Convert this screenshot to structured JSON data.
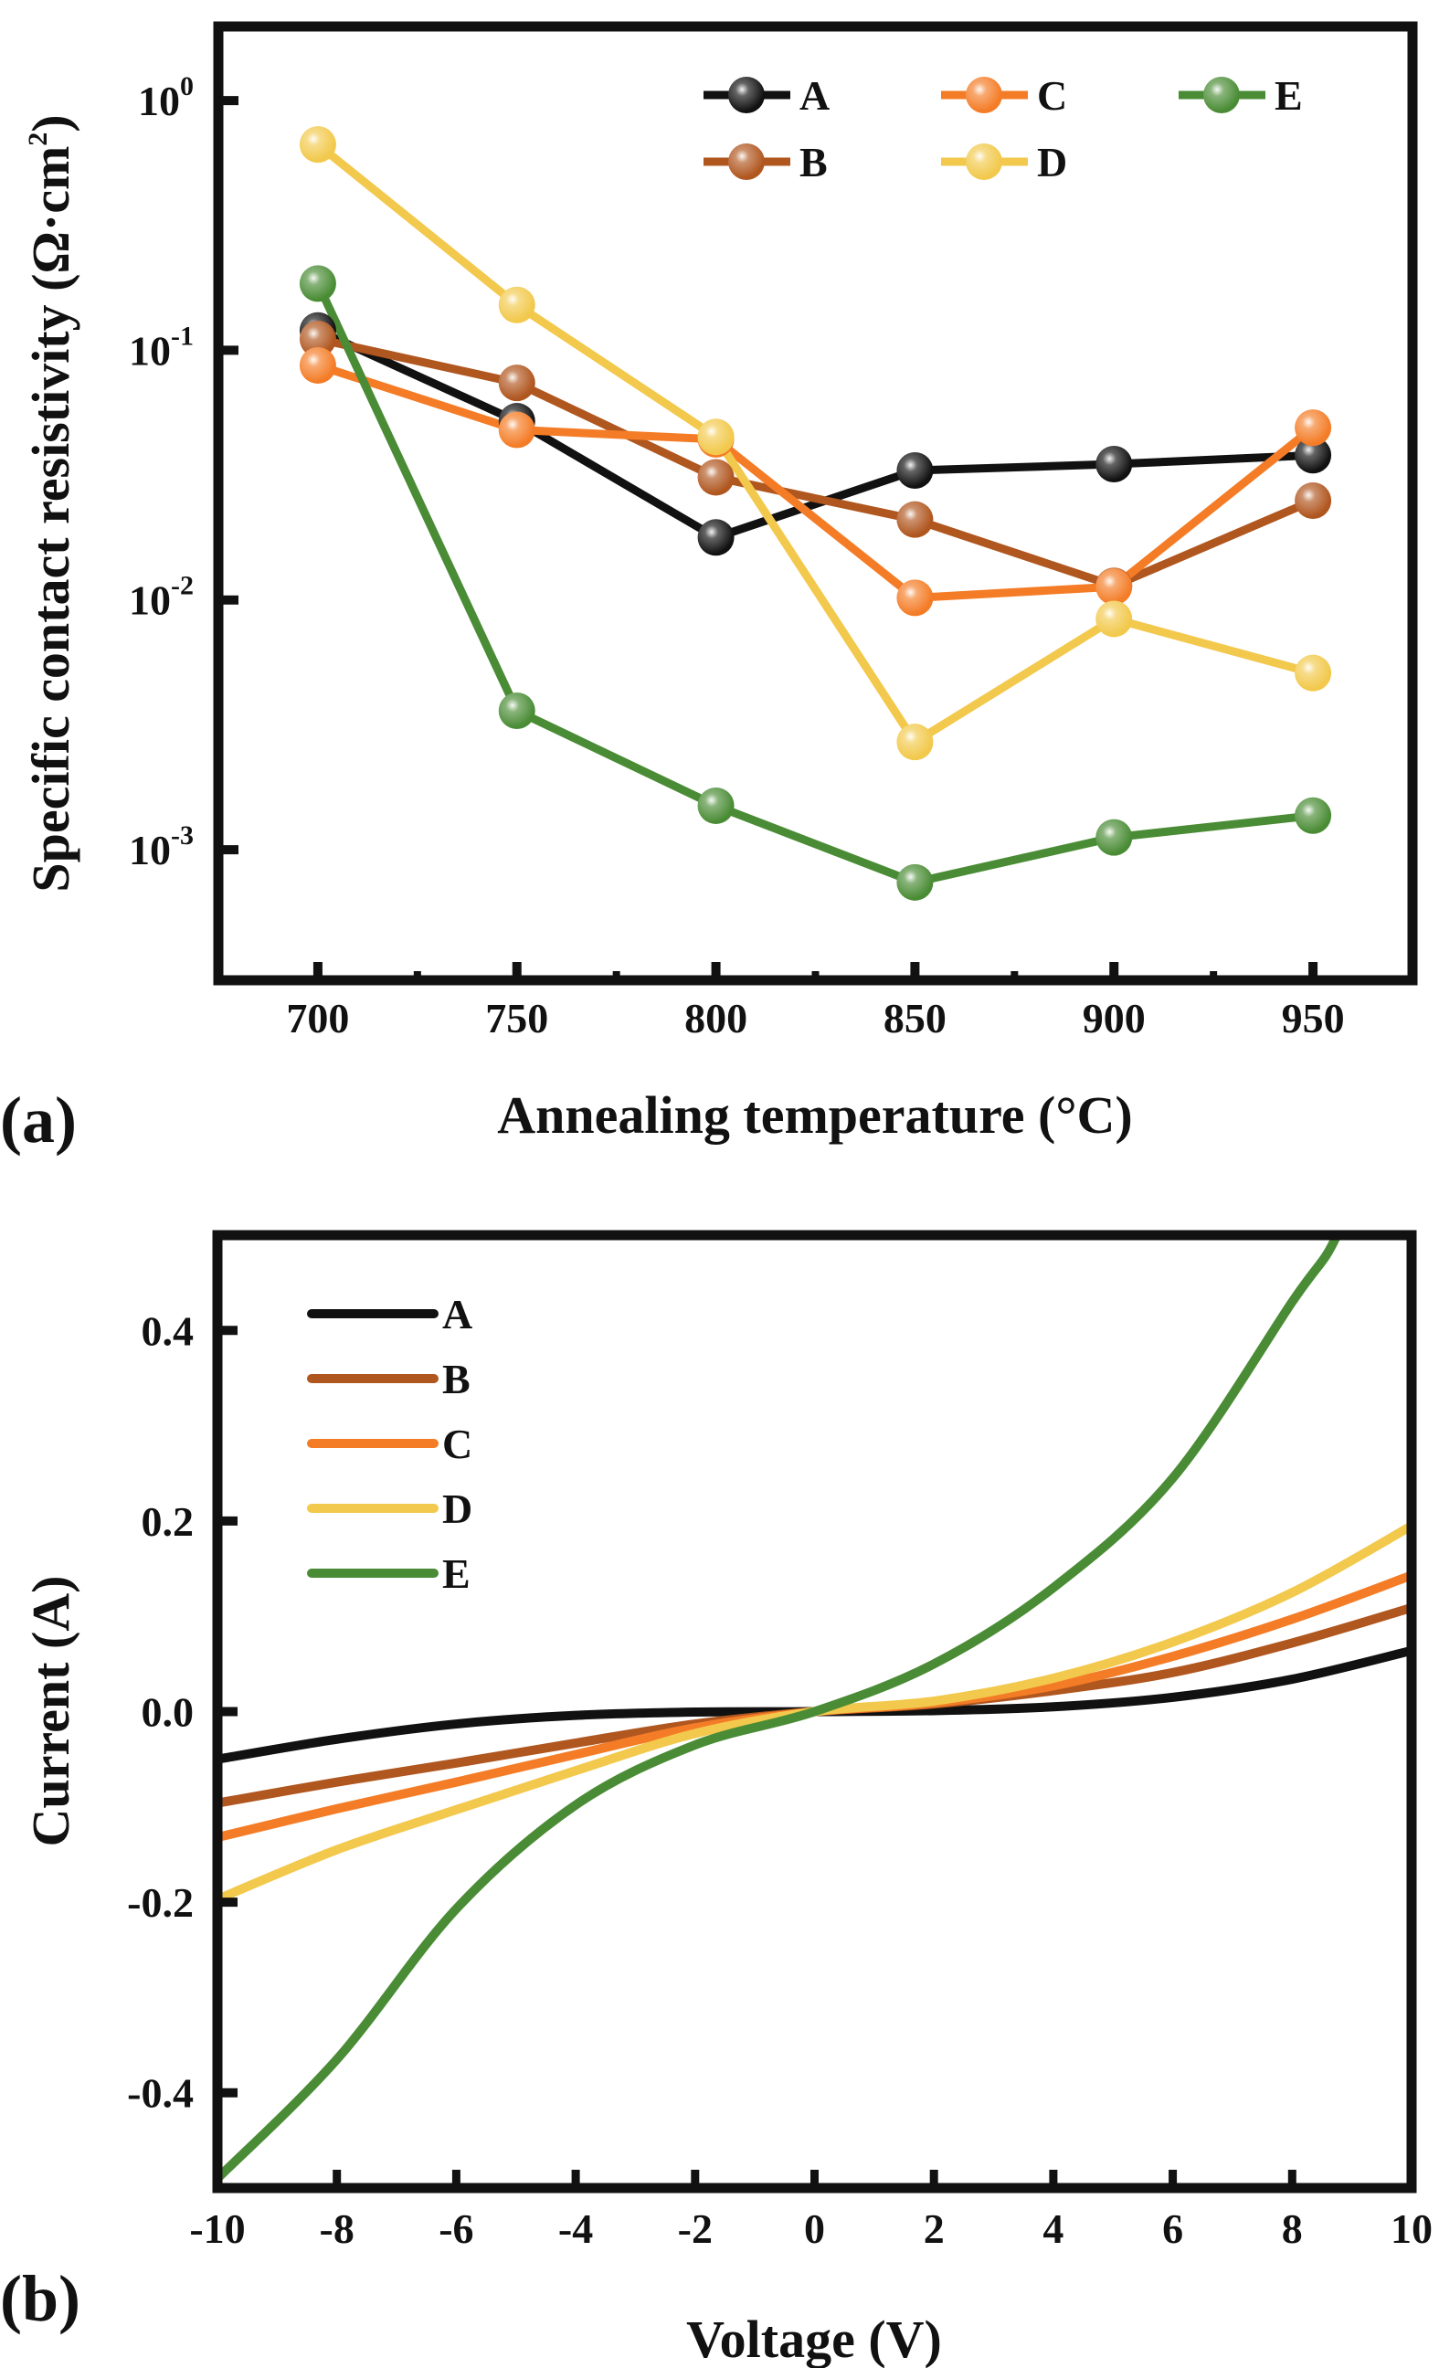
{
  "chart_data": [
    {
      "id": "a",
      "type": "line",
      "panel_label": "(a)",
      "title": "",
      "xlabel": "Annealing temperature (°C)",
      "ylabel": "Specific contact resistivity (Ω·cm²)",
      "ylabel_main": "Specific contact resistivity (Ω·cm",
      "ylabel_sup": "2",
      "ylabel_end": ")",
      "yscale": "log",
      "x": [
        700,
        750,
        800,
        850,
        900,
        950
      ],
      "xlim": [
        675,
        975
      ],
      "ylim": [
        0.0003,
        1.98
      ],
      "xticks": [
        700,
        750,
        800,
        850,
        900,
        950
      ],
      "xtick_labels": [
        "700",
        "750",
        "800",
        "850",
        "900",
        "950"
      ],
      "xminor_ticks": [
        725,
        775,
        825,
        875,
        925
      ],
      "yticks": [
        {
          "value": 1,
          "base": "10",
          "exp": "0"
        },
        {
          "value": 0.1,
          "base": "10",
          "exp": "-1"
        },
        {
          "value": 0.01,
          "base": "10",
          "exp": "-2"
        },
        {
          "value": 0.001,
          "base": "10",
          "exp": "-3"
        }
      ],
      "grid": false,
      "legend": {
        "placement": "top-right",
        "columns": 3,
        "marker": "sphere"
      },
      "series": [
        {
          "name": "A",
          "color": "#111111",
          "values": [
            0.12,
            0.052,
            0.0178,
            0.033,
            0.035,
            0.038
          ]
        },
        {
          "name": "B",
          "color": "#b0561f",
          "values": [
            0.111,
            0.074,
            0.031,
            0.021,
            0.0114,
            0.025
          ]
        },
        {
          "name": "C",
          "color": "#f47c26",
          "values": [
            0.087,
            0.048,
            0.044,
            0.0102,
            0.0113,
            0.049
          ]
        },
        {
          "name": "D",
          "color": "#f2c94c",
          "values": [
            0.667,
            0.152,
            0.045,
            0.0027,
            0.0084,
            0.0051
          ]
        },
        {
          "name": "E",
          "color": "#4a8c35",
          "values": [
            0.185,
            0.0036,
            0.0015,
            0.00074,
            0.00112,
            0.00137
          ]
        }
      ]
    },
    {
      "id": "b",
      "type": "line",
      "panel_label": "(b)",
      "title": "",
      "xlabel": "Voltage (V)",
      "ylabel": "Current (A)",
      "xlim": [
        -10,
        10
      ],
      "ylim": [
        -0.5,
        0.5
      ],
      "xticks": [
        -10,
        -8,
        -6,
        -4,
        -2,
        0,
        2,
        4,
        6,
        8,
        10
      ],
      "xtick_labels": [
        "-10",
        "-8",
        "-6",
        "-4",
        "-2",
        "0",
        "2",
        "4",
        "6",
        "8",
        "10"
      ],
      "yticks": [
        0.4,
        0.2,
        0.0,
        -0.2,
        -0.4
      ],
      "ytick_labels": [
        "0.4",
        "0.2",
        "0.0",
        "-0.2",
        "-0.4"
      ],
      "grid": false,
      "legend": {
        "placement": "top-left",
        "columns": 1,
        "marker": "line"
      },
      "x": [
        -10,
        -8,
        -6,
        -4,
        -2,
        0,
        2,
        4,
        6,
        8,
        10
      ],
      "series": [
        {
          "name": "A",
          "color": "#111111",
          "values": [
            -0.05,
            -0.029,
            -0.013,
            -0.004,
            -0.0005,
            0,
            0.001,
            0.005,
            0.015,
            0.034,
            0.064
          ]
        },
        {
          "name": "B",
          "color": "#b0561f",
          "values": [
            -0.096,
            -0.074,
            -0.054,
            -0.033,
            -0.013,
            0,
            0.008,
            0.022,
            0.041,
            0.072,
            0.109
          ]
        },
        {
          "name": "C",
          "color": "#f47c26",
          "values": [
            -0.132,
            -0.102,
            -0.074,
            -0.045,
            -0.017,
            0,
            0.009,
            0.027,
            0.058,
            0.097,
            0.143
          ]
        },
        {
          "name": "D",
          "color": "#f2c94c",
          "values": [
            -0.197,
            -0.145,
            -0.103,
            -0.062,
            -0.023,
            0,
            0.011,
            0.035,
            0.073,
            0.125,
            0.195
          ]
        },
        {
          "name": "E",
          "color": "#4a8c35",
          "values": [
            -0.49,
            -0.365,
            -0.207,
            -0.098,
            -0.035,
            0,
            0.05,
            0.13,
            0.245,
            0.43,
            null
          ]
        }
      ],
      "notes": "Curve E exceeds the 0.5 A upper limit at about 8.75 V"
    }
  ]
}
